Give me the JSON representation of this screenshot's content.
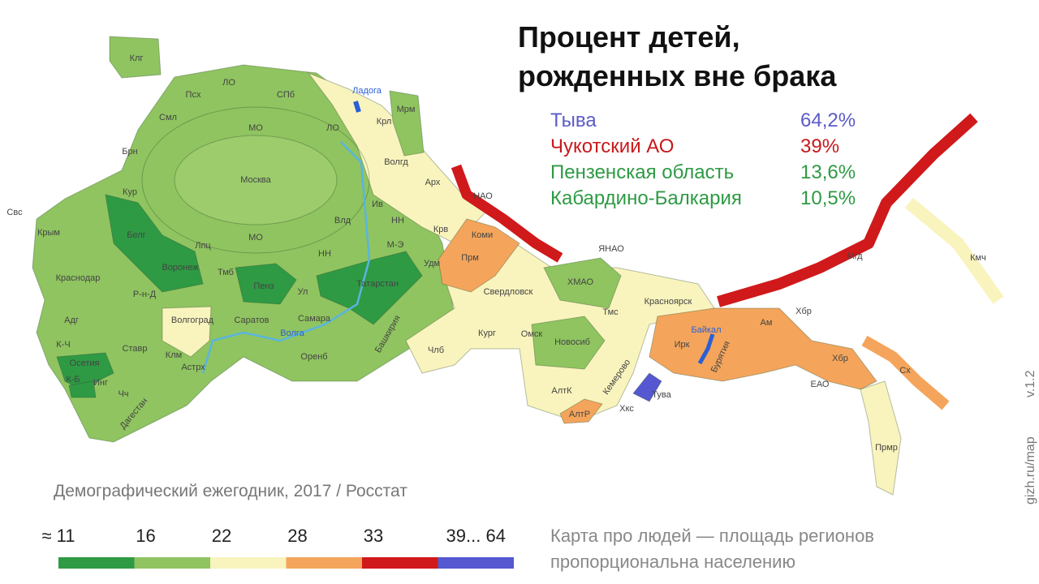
{
  "title": [
    "Процент детей,",
    "рожденных вне брака"
  ],
  "highlights": [
    {
      "name": "Тыва",
      "value": "64,2%",
      "color": "#5b5bc8"
    },
    {
      "name": "Чукотский АО",
      "value": "39%",
      "color": "#c8191b"
    },
    {
      "name": "Пензенская область",
      "value": "13,6%",
      "color": "#2e9a44"
    },
    {
      "name": "Кабардино-Балкария",
      "value": "10,5%",
      "color": "#2e9a44"
    }
  ],
  "source": "Демографический ежегодник, 2017 / Росстат",
  "legend": {
    "labels": [
      "≈ 11",
      "16",
      "22",
      "28",
      "33",
      "39... 64"
    ],
    "colors": [
      "#2e9a44",
      "#8fc460",
      "#f9f4bd",
      "#f4a55b",
      "#d0191b",
      "#5558d0"
    ]
  },
  "note": [
    "Карта про людей — площадь регионов",
    "пропорциональна населению"
  ],
  "watermark": "gizh.ru/map",
  "version": "v.1.2",
  "map": {
    "labels": [
      "Клг",
      "Псх",
      "ЛО",
      "СПб",
      "Ладога",
      "Мрм",
      "Смл",
      "МО",
      "ЛО",
      "Крл",
      "Брн",
      "Москва",
      "Волгд",
      "Арх",
      "НАО",
      "Свс",
      "Крым",
      "Кур",
      "Белг",
      "Ив",
      "НН",
      "МО",
      "Влд",
      "М-Э",
      "Крв",
      "Коми",
      "Прм",
      "ЯНАО",
      "Воронеж",
      "НН",
      "Лпц",
      "Удм",
      "Краснодар",
      "Тмб",
      "Пенз",
      "Татарстан",
      "Свердловск",
      "ХМАО",
      "Красноярск",
      "Мгд",
      "Р-н-Д",
      "Ул",
      "Кмч",
      "Хбр",
      "Волгоград",
      "Саратов",
      "Самара",
      "Тмс",
      "Ам",
      "Байкал",
      "Адг",
      "Волга",
      "Омск",
      "Кург",
      "Новосиб",
      "Ирк",
      "К-Ч",
      "Ставр",
      "Оренб",
      "Башкирия",
      "Члб",
      "Хбр",
      "Осетия",
      "Клм",
      "Астрх",
      "Бурятия",
      "Кемерово",
      "АлтК",
      "ЕАО",
      "Сх",
      "Тува",
      "Хкс",
      "АлтР",
      "Прмр",
      "К-Б",
      "Инг",
      "Чч",
      "Дагестан"
    ]
  }
}
